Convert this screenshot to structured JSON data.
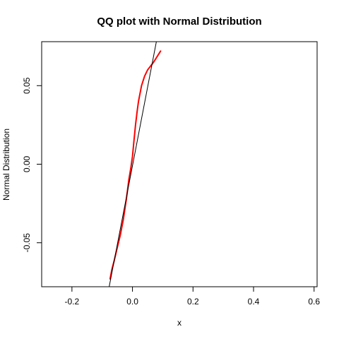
{
  "chart_data": {
    "type": "line",
    "title": "QQ plot with Normal Distribution",
    "xlabel": "x",
    "ylabel": "Normal Distribution",
    "xlim": [
      -0.3,
      0.61
    ],
    "ylim": [
      -0.078,
      0.078
    ],
    "x_ticks": [
      {
        "value": -0.2,
        "label": "-0.2"
      },
      {
        "value": 0.0,
        "label": "0.0"
      },
      {
        "value": 0.2,
        "label": "0.2"
      },
      {
        "value": 0.4,
        "label": "0.4"
      },
      {
        "value": 0.6,
        "label": "0.6"
      }
    ],
    "y_ticks": [
      {
        "value": -0.05,
        "label": "-0.05"
      },
      {
        "value": 0.0,
        "label": "0.00"
      },
      {
        "value": 0.05,
        "label": "0.05"
      }
    ],
    "grid": false,
    "series": [
      {
        "role": "sample-quantiles",
        "color": "#ff0000",
        "x": [
          -0.074,
          -0.068,
          -0.06,
          -0.05,
          -0.04,
          -0.03,
          -0.02,
          -0.012,
          -0.005,
          0.0,
          0.005,
          0.01,
          0.015,
          0.02,
          0.03,
          0.04,
          0.05,
          0.07,
          0.093
        ],
        "y": [
          -0.073,
          -0.067,
          -0.061,
          -0.053,
          -0.045,
          -0.035,
          -0.022,
          -0.01,
          -0.002,
          0.005,
          0.015,
          0.025,
          0.033,
          0.04,
          0.05,
          0.056,
          0.06,
          0.065,
          0.072
        ]
      },
      {
        "role": "reference-line",
        "color": "#000000",
        "x": [
          -0.077,
          0.079
        ],
        "y": [
          -0.078,
          0.078
        ]
      }
    ]
  }
}
